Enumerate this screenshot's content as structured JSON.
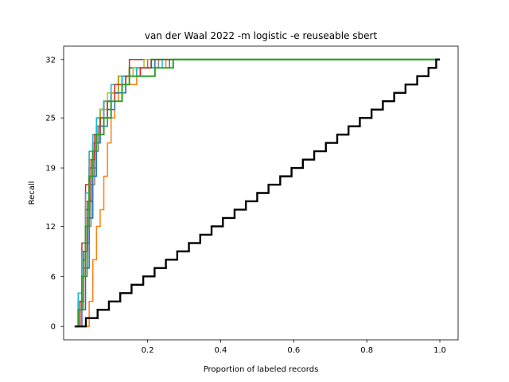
{
  "chart_data": {
    "type": "line",
    "title": "van der Waal 2022 -m logistic -e reuseable sbert",
    "xlabel": "Proportion of labeled records",
    "ylabel": "Recall",
    "xlim": [
      -0.03,
      1.05
    ],
    "ylim": [
      -1.6,
      33.6
    ],
    "x_ticks": [
      0.2,
      0.4,
      0.6,
      0.8,
      1.0
    ],
    "x_tick_labels": [
      "0.2",
      "0.4",
      "0.6",
      "0.8",
      "1.0"
    ],
    "y_ticks": [
      0,
      6,
      12,
      19,
      25,
      32
    ],
    "y_tick_labels": [
      "0",
      "6",
      "12",
      "19",
      "25",
      "32"
    ],
    "total_relevant": 32,
    "grid": false,
    "legend": "none",
    "series": [
      {
        "color": "#1f77b4",
        "width": 1.5,
        "points": [
          [
            0.005,
            0
          ],
          [
            0.01,
            2
          ],
          [
            0.02,
            6
          ],
          [
            0.03,
            10
          ],
          [
            0.04,
            15
          ],
          [
            0.05,
            19
          ],
          [
            0.06,
            22
          ],
          [
            0.07,
            24
          ],
          [
            0.08,
            26
          ],
          [
            0.09,
            27
          ],
          [
            0.11,
            29
          ],
          [
            0.13,
            30
          ],
          [
            0.16,
            31
          ],
          [
            0.2,
            31
          ],
          [
            0.24,
            31
          ],
          [
            0.26,
            31
          ],
          [
            0.26,
            32
          ],
          [
            1.0,
            32
          ]
        ]
      },
      {
        "color": "#ff7f0e",
        "width": 1.5,
        "points": [
          [
            0.01,
            0
          ],
          [
            0.03,
            0
          ],
          [
            0.04,
            3
          ],
          [
            0.05,
            8
          ],
          [
            0.06,
            12
          ],
          [
            0.07,
            14
          ],
          [
            0.08,
            18
          ],
          [
            0.09,
            22
          ],
          [
            0.1,
            25
          ],
          [
            0.11,
            27
          ],
          [
            0.12,
            28
          ],
          [
            0.14,
            29
          ],
          [
            0.17,
            30
          ],
          [
            0.22,
            31
          ],
          [
            0.25,
            31
          ],
          [
            0.25,
            32
          ],
          [
            1.0,
            32
          ]
        ]
      },
      {
        "color": "#2ca02c",
        "width": 2.0,
        "points": [
          [
            0.005,
            0
          ],
          [
            0.01,
            3
          ],
          [
            0.02,
            8
          ],
          [
            0.03,
            14
          ],
          [
            0.04,
            19
          ],
          [
            0.05,
            22
          ],
          [
            0.06,
            24
          ],
          [
            0.07,
            26
          ],
          [
            0.08,
            27
          ],
          [
            0.1,
            28
          ],
          [
            0.12,
            30
          ],
          [
            0.15,
            31
          ],
          [
            0.19,
            31
          ],
          [
            0.21,
            32
          ],
          [
            1.0,
            32
          ]
        ]
      },
      {
        "color": "#d62728",
        "width": 1.5,
        "points": [
          [
            0.005,
            0
          ],
          [
            0.01,
            4
          ],
          [
            0.02,
            10
          ],
          [
            0.03,
            17
          ],
          [
            0.04,
            21
          ],
          [
            0.05,
            23
          ],
          [
            0.06,
            25
          ],
          [
            0.08,
            27
          ],
          [
            0.1,
            29
          ],
          [
            0.12,
            30
          ],
          [
            0.15,
            32
          ],
          [
            1.0,
            32
          ]
        ]
      },
      {
        "color": "#9467bd",
        "width": 1.5,
        "points": [
          [
            0.005,
            0
          ],
          [
            0.01,
            3
          ],
          [
            0.02,
            9
          ],
          [
            0.03,
            16
          ],
          [
            0.04,
            20
          ],
          [
            0.05,
            23
          ],
          [
            0.06,
            25
          ],
          [
            0.08,
            27
          ],
          [
            0.1,
            29
          ],
          [
            0.13,
            30
          ],
          [
            0.17,
            31
          ],
          [
            0.2,
            32
          ],
          [
            1.0,
            32
          ]
        ]
      },
      {
        "color": "#8c564b",
        "width": 1.5,
        "points": [
          [
            0.005,
            0
          ],
          [
            0.015,
            2
          ],
          [
            0.025,
            7
          ],
          [
            0.035,
            13
          ],
          [
            0.045,
            18
          ],
          [
            0.055,
            22
          ],
          [
            0.065,
            24
          ],
          [
            0.08,
            26
          ],
          [
            0.1,
            28
          ],
          [
            0.12,
            30
          ],
          [
            0.16,
            31
          ],
          [
            0.21,
            32
          ],
          [
            1.0,
            32
          ]
        ]
      },
      {
        "color": "#e377c2",
        "width": 1.5,
        "points": [
          [
            0.005,
            0
          ],
          [
            0.01,
            2
          ],
          [
            0.02,
            7
          ],
          [
            0.03,
            13
          ],
          [
            0.04,
            19
          ],
          [
            0.05,
            22
          ],
          [
            0.06,
            24
          ],
          [
            0.08,
            26
          ],
          [
            0.1,
            28
          ],
          [
            0.13,
            30
          ],
          [
            0.18,
            31
          ],
          [
            0.22,
            32
          ],
          [
            1.0,
            32
          ]
        ]
      },
      {
        "color": "#7f7f7f",
        "width": 1.5,
        "points": [
          [
            0.005,
            0
          ],
          [
            0.015,
            2
          ],
          [
            0.025,
            6
          ],
          [
            0.035,
            12
          ],
          [
            0.045,
            17
          ],
          [
            0.055,
            21
          ],
          [
            0.065,
            24
          ],
          [
            0.08,
            26
          ],
          [
            0.1,
            28
          ],
          [
            0.13,
            30
          ],
          [
            0.17,
            31
          ],
          [
            0.23,
            32
          ],
          [
            1.0,
            32
          ]
        ]
      },
      {
        "color": "#bcbd22",
        "width": 1.5,
        "points": [
          [
            0.005,
            0
          ],
          [
            0.01,
            3
          ],
          [
            0.02,
            8
          ],
          [
            0.03,
            15
          ],
          [
            0.04,
            20
          ],
          [
            0.05,
            23
          ],
          [
            0.06,
            25
          ],
          [
            0.07,
            26
          ],
          [
            0.09,
            28
          ],
          [
            0.12,
            30
          ],
          [
            0.16,
            31
          ],
          [
            0.19,
            32
          ],
          [
            1.0,
            32
          ]
        ]
      },
      {
        "color": "#17becf",
        "width": 1.5,
        "points": [
          [
            0.005,
            0
          ],
          [
            0.01,
            4
          ],
          [
            0.02,
            9
          ],
          [
            0.03,
            16
          ],
          [
            0.04,
            21
          ],
          [
            0.05,
            23
          ],
          [
            0.06,
            25
          ],
          [
            0.08,
            27
          ],
          [
            0.1,
            29
          ],
          [
            0.13,
            30
          ],
          [
            0.17,
            31
          ],
          [
            0.24,
            32
          ],
          [
            1.0,
            32
          ]
        ]
      },
      {
        "color": "#1f77b4",
        "width": 1.5,
        "points": [
          [
            0.005,
            0
          ],
          [
            0.02,
            2
          ],
          [
            0.03,
            7
          ],
          [
            0.04,
            13
          ],
          [
            0.05,
            18
          ],
          [
            0.06,
            22
          ],
          [
            0.07,
            24
          ],
          [
            0.09,
            26
          ],
          [
            0.11,
            28
          ],
          [
            0.14,
            30
          ],
          [
            0.18,
            31
          ],
          [
            0.22,
            32
          ],
          [
            1.0,
            32
          ]
        ]
      },
      {
        "color": "#d62728",
        "width": 1.5,
        "points": [
          [
            0.005,
            0
          ],
          [
            0.015,
            3
          ],
          [
            0.025,
            9
          ],
          [
            0.035,
            15
          ],
          [
            0.045,
            20
          ],
          [
            0.055,
            23
          ],
          [
            0.07,
            25
          ],
          [
            0.09,
            27
          ],
          [
            0.11,
            29
          ],
          [
            0.14,
            30
          ],
          [
            0.18,
            31
          ],
          [
            0.21,
            32
          ],
          [
            1.0,
            32
          ]
        ]
      },
      {
        "color": "#2ca02c",
        "width": 2.0,
        "points": [
          [
            0.005,
            0
          ],
          [
            0.01,
            2
          ],
          [
            0.02,
            6
          ],
          [
            0.03,
            12
          ],
          [
            0.04,
            18
          ],
          [
            0.05,
            21
          ],
          [
            0.06,
            23
          ],
          [
            0.08,
            25
          ],
          [
            0.1,
            27
          ],
          [
            0.13,
            29
          ],
          [
            0.15,
            30
          ],
          [
            0.22,
            31
          ],
          [
            0.25,
            31
          ],
          [
            0.27,
            32
          ],
          [
            1.0,
            32
          ]
        ]
      },
      {
        "color": "#000000",
        "width": 2.4,
        "random_baseline": true,
        "points": [
          [
            0.0,
            0
          ],
          [
            0.031,
            0
          ],
          [
            0.031,
            1
          ],
          [
            0.063,
            1
          ],
          [
            0.063,
            2
          ],
          [
            0.094,
            2
          ],
          [
            0.094,
            3
          ],
          [
            0.125,
            3
          ],
          [
            0.125,
            4
          ],
          [
            0.156,
            4
          ],
          [
            0.156,
            5
          ],
          [
            0.188,
            5
          ],
          [
            0.188,
            6
          ],
          [
            0.219,
            6
          ],
          [
            0.219,
            7
          ],
          [
            0.25,
            7
          ],
          [
            0.25,
            8
          ],
          [
            0.281,
            8
          ],
          [
            0.281,
            9
          ],
          [
            0.313,
            9
          ],
          [
            0.313,
            10
          ],
          [
            0.344,
            10
          ],
          [
            0.344,
            11
          ],
          [
            0.375,
            11
          ],
          [
            0.375,
            12
          ],
          [
            0.406,
            12
          ],
          [
            0.406,
            13
          ],
          [
            0.438,
            13
          ],
          [
            0.438,
            14
          ],
          [
            0.469,
            14
          ],
          [
            0.469,
            15
          ],
          [
            0.5,
            15
          ],
          [
            0.5,
            16
          ],
          [
            0.531,
            16
          ],
          [
            0.531,
            17
          ],
          [
            0.563,
            17
          ],
          [
            0.563,
            18
          ],
          [
            0.594,
            18
          ],
          [
            0.594,
            19
          ],
          [
            0.625,
            19
          ],
          [
            0.625,
            20
          ],
          [
            0.656,
            20
          ],
          [
            0.656,
            21
          ],
          [
            0.688,
            21
          ],
          [
            0.688,
            22
          ],
          [
            0.719,
            22
          ],
          [
            0.719,
            23
          ],
          [
            0.75,
            23
          ],
          [
            0.75,
            24
          ],
          [
            0.781,
            24
          ],
          [
            0.781,
            25
          ],
          [
            0.813,
            25
          ],
          [
            0.813,
            26
          ],
          [
            0.844,
            26
          ],
          [
            0.844,
            27
          ],
          [
            0.875,
            27
          ],
          [
            0.875,
            28
          ],
          [
            0.906,
            28
          ],
          [
            0.906,
            29
          ],
          [
            0.938,
            29
          ],
          [
            0.938,
            30
          ],
          [
            0.969,
            30
          ],
          [
            0.969,
            31
          ],
          [
            0.99,
            31
          ],
          [
            0.99,
            32
          ],
          [
            1.0,
            32
          ]
        ]
      }
    ]
  }
}
